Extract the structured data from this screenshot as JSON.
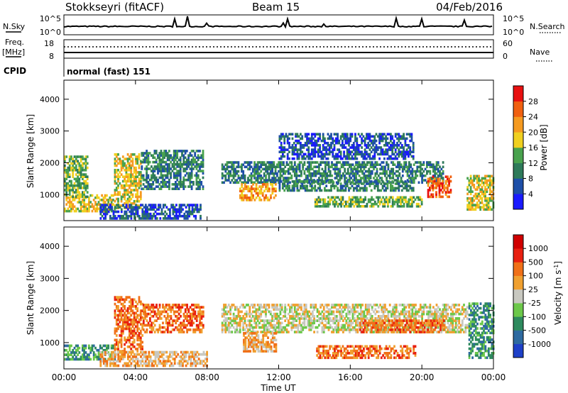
{
  "header": {
    "station": "Stokkseyri (fitACF)",
    "beam": "Beam 15",
    "date": "04/Feb/2016"
  },
  "noise_panel": {
    "left_label": "N.Sky",
    "left_ticks": [
      "10^5",
      "10^0"
    ],
    "right_label": "N.Search",
    "right_ticks": [
      "10^5",
      "10^0"
    ]
  },
  "freq_panel": {
    "left_label_top": "Freq.",
    "left_label_bottom": "[MHz]",
    "left_ticks": [
      "18",
      "8"
    ],
    "right_label": "Nave",
    "right_ticks": [
      "60",
      "0"
    ]
  },
  "cpid_panel": {
    "label": "CPID",
    "program": "normal (fast) 151"
  },
  "x_axis": {
    "label": "Time UT",
    "ticks": [
      "00:00",
      "04:00",
      "08:00",
      "12:00",
      "16:00",
      "20:00",
      "00:00"
    ]
  },
  "chart_data": [
    {
      "type": "heatmap",
      "title": "Power",
      "xlabel": "Time UT",
      "ylabel": "Slant Range [km]",
      "x_range_hours": [
        0,
        24
      ],
      "ylim": [
        180,
        4600
      ],
      "yticks": [
        "1000",
        "2000",
        "3000",
        "4000"
      ],
      "colorbar": {
        "label": "Power [dB]",
        "ticks": [
          "4",
          "8",
          "12",
          "16",
          "20",
          "24",
          "28"
        ],
        "colors": [
          "#1a1aff",
          "#1e4fa8",
          "#2e7a5a",
          "#49a24e",
          "#f0d020",
          "#f59a20",
          "#f06010",
          "#e81010"
        ]
      },
      "regions": [
        {
          "t0": 0.0,
          "t1": 2.8,
          "r0": 450,
          "r1": 1000,
          "level": 4
        },
        {
          "t0": 0.0,
          "t1": 1.3,
          "r0": 900,
          "r1": 2200,
          "level": 3
        },
        {
          "t0": 2.8,
          "t1": 4.3,
          "r0": 550,
          "r1": 2300,
          "level": 4
        },
        {
          "t0": 4.3,
          "t1": 7.8,
          "r0": 1150,
          "r1": 2400,
          "level": 2
        },
        {
          "t0": 2.0,
          "t1": 7.6,
          "r0": 220,
          "r1": 700,
          "level": 1
        },
        {
          "t0": 8.8,
          "t1": 21.2,
          "r0": 1350,
          "r1": 2050,
          "level": 2
        },
        {
          "t0": 9.8,
          "t1": 11.8,
          "r0": 800,
          "r1": 1350,
          "level": 5
        },
        {
          "t0": 12.0,
          "t1": 19.5,
          "r0": 1100,
          "r1": 1400,
          "level": 2
        },
        {
          "t0": 14.0,
          "t1": 20.0,
          "r0": 600,
          "r1": 900,
          "level": 3
        },
        {
          "t0": 12.0,
          "t1": 19.5,
          "r0": 2100,
          "r1": 2900,
          "level": 1
        },
        {
          "t0": 20.3,
          "t1": 21.6,
          "r0": 900,
          "r1": 1600,
          "level": 6
        },
        {
          "t0": 22.5,
          "t1": 24.0,
          "r0": 500,
          "r1": 1600,
          "level": 4
        }
      ]
    },
    {
      "type": "heatmap",
      "title": "Velocity",
      "xlabel": "Time UT",
      "ylabel": "Slant Range [km]",
      "x_range_hours": [
        0,
        24
      ],
      "ylim": [
        180,
        4600
      ],
      "yticks": [
        "1000",
        "2000",
        "3000",
        "4000"
      ],
      "colorbar": {
        "label": "Velocity [m s^-1]",
        "ticks": [
          "1000",
          "500",
          "100",
          "25",
          "-25",
          "-100",
          "-500",
          "-1000"
        ],
        "colors": [
          "#1e40c8",
          "#2e6aa0",
          "#2e8a5e",
          "#6cc84a",
          "#c8c8c0",
          "#f0a030",
          "#f07018",
          "#e82010",
          "#d00000"
        ]
      },
      "regions": [
        {
          "t0": 0.0,
          "t1": 2.8,
          "r0": 450,
          "r1": 900,
          "level": 2
        },
        {
          "t0": 2.8,
          "t1": 4.4,
          "r0": 700,
          "r1": 2400,
          "level": 6
        },
        {
          "t0": 4.4,
          "t1": 7.8,
          "r0": 1300,
          "r1": 2200,
          "level": 6
        },
        {
          "t0": 2.0,
          "t1": 8.0,
          "r0": 250,
          "r1": 700,
          "level": 5
        },
        {
          "t0": 8.8,
          "t1": 22.5,
          "r0": 1300,
          "r1": 2200,
          "level": 4
        },
        {
          "t0": 10.0,
          "t1": 11.8,
          "r0": 700,
          "r1": 1300,
          "level": 5
        },
        {
          "t0": 14.0,
          "t1": 19.6,
          "r0": 500,
          "r1": 900,
          "level": 6
        },
        {
          "t0": 16.5,
          "t1": 21.2,
          "r0": 1300,
          "r1": 1700,
          "level": 6
        },
        {
          "t0": 22.6,
          "t1": 24.0,
          "r0": 500,
          "r1": 2200,
          "level": 2
        }
      ]
    }
  ]
}
